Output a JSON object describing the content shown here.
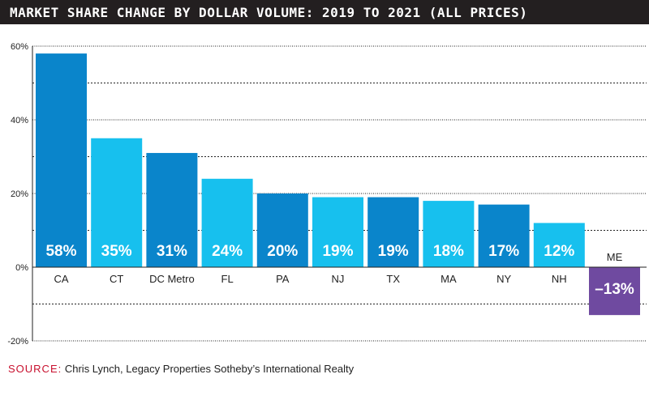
{
  "header": {
    "title": "MARKET SHARE CHANGE BY DOLLAR VOLUME: 2019 TO 2021 (ALL PRICES)"
  },
  "footer": {
    "source_prefix": "SOURCE:",
    "source_text": "Chris Lynch, Legacy Properties Sotheby’s International Realty"
  },
  "colors": {
    "dark_blue": "#0a85cb",
    "light_blue": "#17c0ee",
    "purple": "#6f4aa0",
    "title_bg": "#231f20",
    "source_red": "#c8102e"
  },
  "chart_data": {
    "type": "bar",
    "title": "MARKET SHARE CHANGE BY DOLLAR VOLUME: 2019 TO 2021 (ALL PRICES)",
    "categories": [
      "CA",
      "CT",
      "DC Metro",
      "FL",
      "PA",
      "NJ",
      "TX",
      "MA",
      "NY",
      "NH",
      "ME"
    ],
    "values": [
      58,
      35,
      31,
      24,
      20,
      19,
      19,
      18,
      17,
      12,
      -13
    ],
    "data_labels": [
      "58%",
      "35%",
      "31%",
      "24%",
      "20%",
      "19%",
      "19%",
      "18%",
      "17%",
      "12%",
      "–13%"
    ],
    "bar_colors": [
      "#0a85cb",
      "#17c0ee",
      "#0a85cb",
      "#17c0ee",
      "#0a85cb",
      "#17c0ee",
      "#0a85cb",
      "#17c0ee",
      "#0a85cb",
      "#17c0ee",
      "#6f4aa0"
    ],
    "ylim": [
      -20,
      60
    ],
    "yticks": [
      -20,
      0,
      20,
      40,
      60
    ],
    "ytick_labels": [
      "-20%",
      "0%",
      "20%",
      "40%",
      "60%"
    ],
    "minor_gridlines": [
      -10,
      10,
      30,
      50
    ],
    "xlabel": "",
    "ylabel": "",
    "grid": true
  }
}
